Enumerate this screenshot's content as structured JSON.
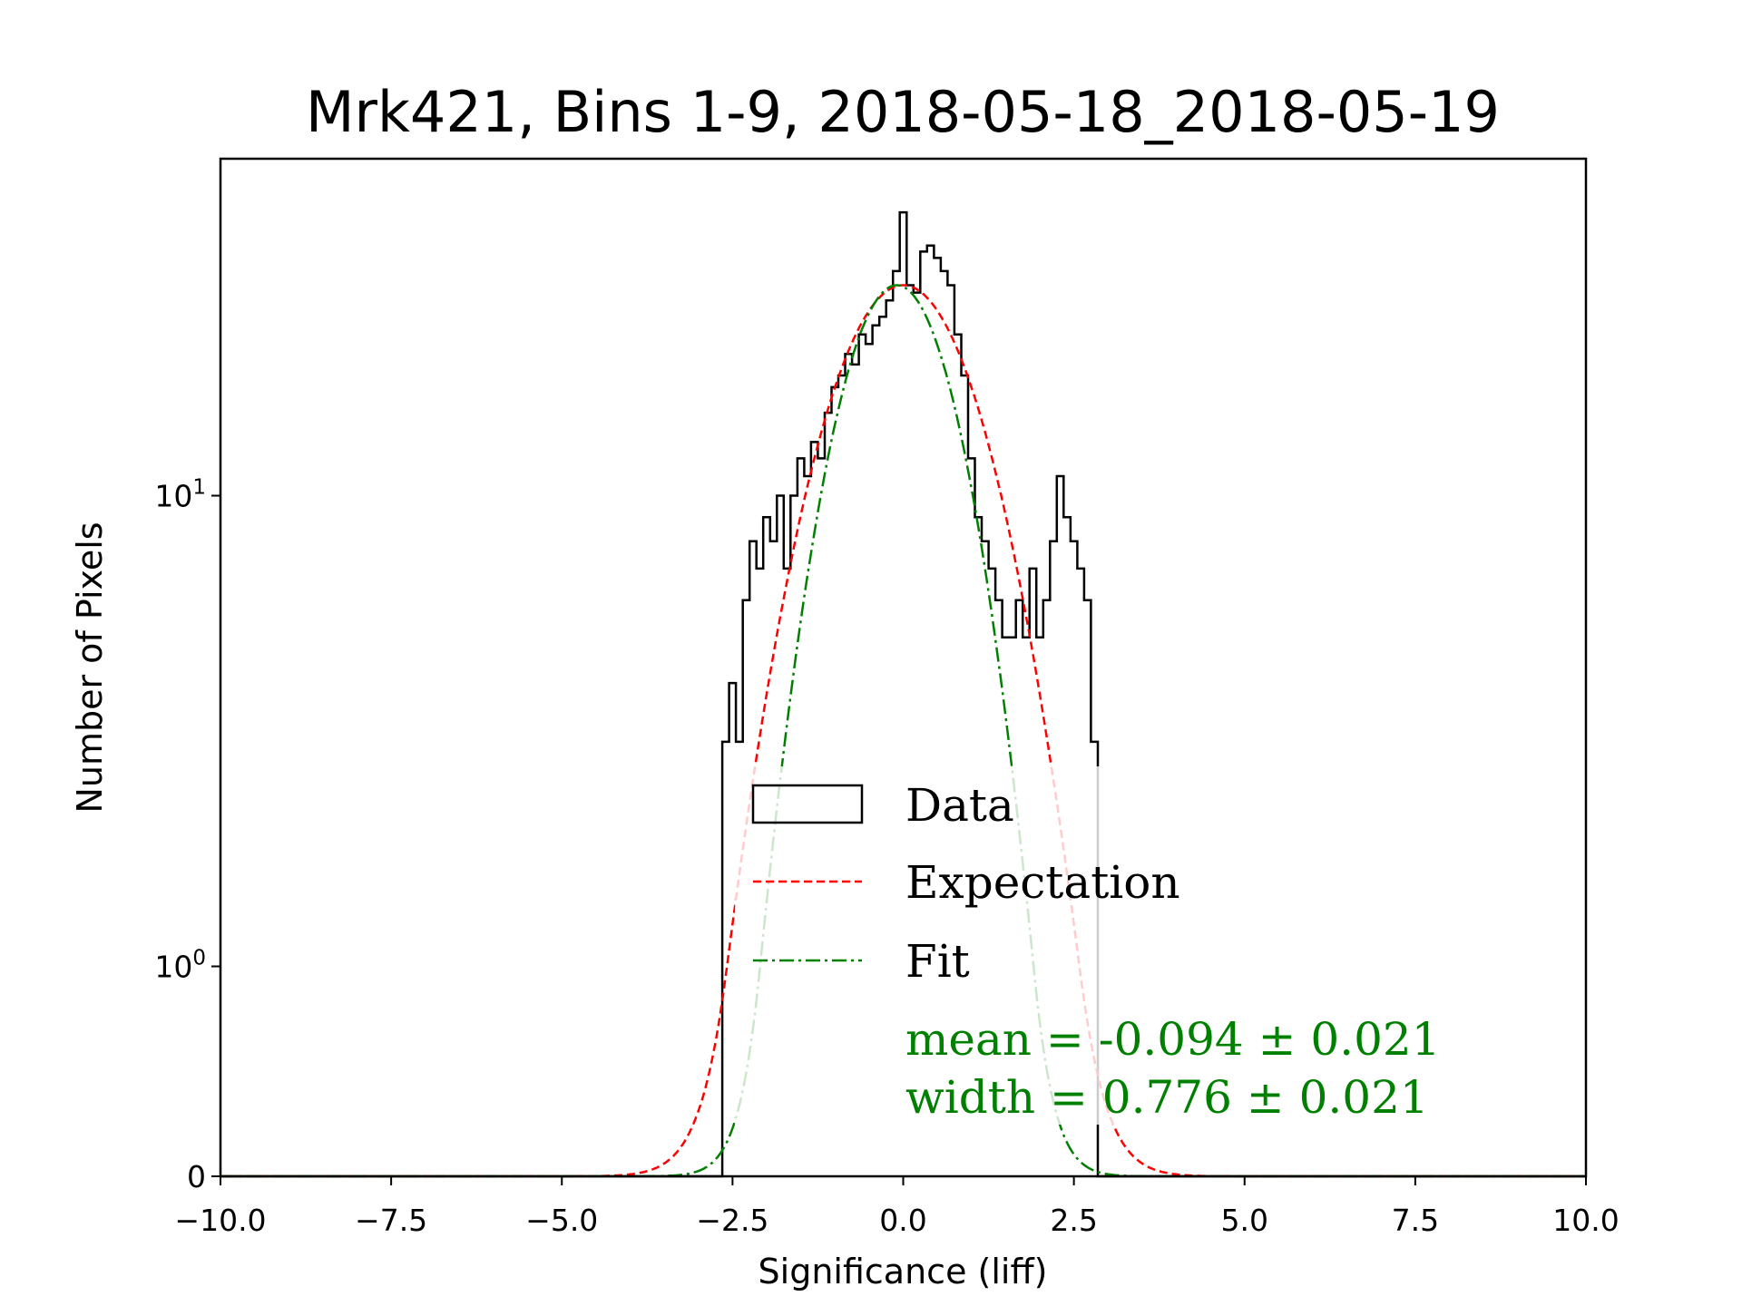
{
  "chart_data": {
    "type": "histogram",
    "title": "Mrk421, Bins 1-9, 2018-05-18_2018-05-19",
    "xlabel": "Significance (liff)",
    "ylabel": "Number of Pixels",
    "xlim": [
      -10,
      10
    ],
    "yscale": "symlog",
    "ylim": [
      0,
      52
    ],
    "xticks": [
      -10,
      -7.5,
      -5,
      -2.5,
      0,
      2.5,
      5,
      7.5,
      10
    ],
    "xtick_labels": [
      "−10.0",
      "−7.5",
      "−5.0",
      "−2.5",
      "0.0",
      "2.5",
      "5.0",
      "7.5",
      "10.0"
    ],
    "yticks": [
      {
        "value": 0,
        "base": "0",
        "exp": ""
      },
      {
        "value": 1,
        "base": "10",
        "exp": "0"
      },
      {
        "value": 10,
        "base": "10",
        "exp": "1"
      }
    ],
    "histogram": {
      "name": "Data",
      "color": "#000000",
      "bin_start": -2.65,
      "bin_width": 0.1,
      "counts": [
        3,
        4,
        3,
        6,
        8,
        7,
        9,
        8,
        10,
        7,
        10,
        12,
        11,
        13,
        12,
        15,
        17,
        18,
        20,
        19,
        22,
        21,
        23,
        24,
        26,
        30,
        40,
        28,
        27,
        33,
        34,
        32,
        30,
        28,
        22,
        18,
        12,
        9,
        8,
        7,
        6,
        5,
        5,
        6,
        5,
        7,
        5,
        6,
        8,
        11,
        9,
        8,
        7,
        6,
        3
      ]
    },
    "expectation": {
      "name": "Expectation",
      "color": "#ff0000",
      "mean": 0,
      "width": 1,
      "amplitude": 28
    },
    "fit": {
      "name": "Fit",
      "color": "#008000",
      "mean": -0.094,
      "width": 0.776,
      "amplitude": 28
    },
    "legend": {
      "placement": "lower-center",
      "entries": [
        "Data",
        "Expectation",
        "Fit"
      ]
    },
    "annotation": {
      "line1": "mean = -0.094 ± 0.021",
      "line2": "width = 0.776 ± 0.021",
      "color": "#008000"
    }
  }
}
